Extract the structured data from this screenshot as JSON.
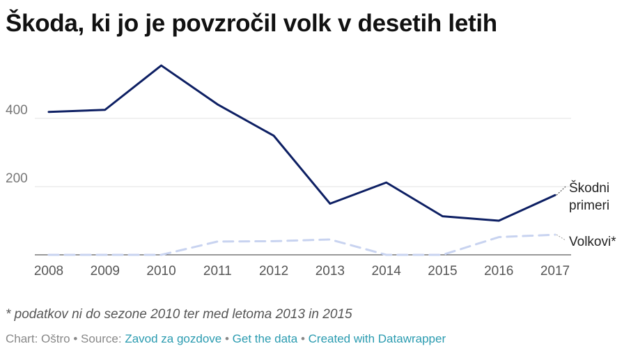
{
  "title": "Škoda, ki jo je povzročil volk v desetih letih",
  "chart_data": {
    "type": "line",
    "x": [
      "2008",
      "2009",
      "2010",
      "2011",
      "2012",
      "2013",
      "2014",
      "2015",
      "2016",
      "2017"
    ],
    "ylim": [
      0,
      600
    ],
    "yticks": [
      200,
      400
    ],
    "grid": true,
    "series": [
      {
        "name": "Škodni primeri",
        "label_lines": [
          "Škodni",
          "primeri"
        ],
        "values": [
          419,
          425,
          555,
          441,
          349,
          150,
          212,
          113,
          100,
          175
        ],
        "color": "#0d1f63",
        "style": "solid"
      },
      {
        "name": "Volkovi*",
        "label_lines": [
          "Volkovi*"
        ],
        "values": [
          0,
          0,
          0,
          39,
          40,
          45,
          0,
          0,
          52,
          59
        ],
        "color": "#c8d3f0",
        "style": "dashed"
      }
    ]
  },
  "note": "* podatkov ni do sezone 2010 ter med letoma 2013 in 2015",
  "footer": {
    "chart_by": "Chart: Oštro",
    "sep1": " • ",
    "source_label": "Source: ",
    "source_link": "Zavod za gozdove",
    "sep2": " • ",
    "data_link": "Get the data",
    "sep3": " • ",
    "dw_link": "Created with Datawrapper"
  }
}
